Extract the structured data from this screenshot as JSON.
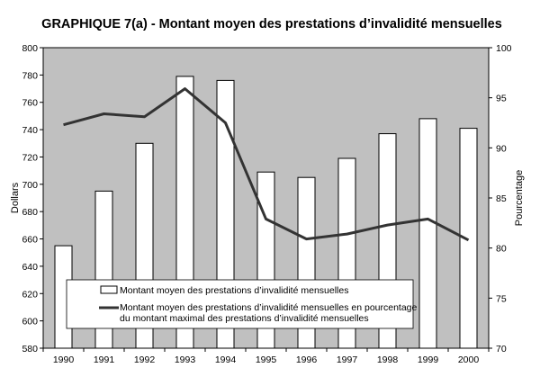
{
  "chart_data": {
    "type": "bar",
    "title": "GRAPHIQUE 7(a) - Montant moyen des prestations d’invalidité mensuelles",
    "categories": [
      "1990",
      "1991",
      "1992",
      "1993",
      "1994",
      "1995",
      "1996",
      "1997",
      "1998",
      "1999",
      "2000"
    ],
    "ylabel": "Dollars",
    "ylim": [
      580,
      800
    ],
    "yticks": [
      580,
      600,
      620,
      640,
      660,
      680,
      700,
      720,
      740,
      760,
      780,
      800
    ],
    "y2label": "Pourcentage",
    "y2lim": [
      70,
      100
    ],
    "y2ticks": [
      70,
      75,
      80,
      85,
      90,
      95,
      100
    ],
    "plot_background": "#c0c0c0",
    "grid": false,
    "legend_position": "bottom-center",
    "series": [
      {
        "name": "Montant moyen des prestations d’invalidité mensuelles",
        "type": "bar",
        "axis": "left",
        "color": "#ffffff",
        "values": [
          655,
          695,
          730,
          779,
          776,
          709,
          705,
          719,
          737,
          748,
          741
        ]
      },
      {
        "name": "Montant moyen des prestations d’invalidité mensuelles en pourcentage du montant maximal des prestations d’invalidité mensuelles",
        "name_lines": [
          "Montant moyen des prestations d’invalidité mensuelles en pourcentage",
          "du montant maximal des prestations d’invalidité mensuelles"
        ],
        "type": "line",
        "axis": "right",
        "color": "#333333",
        "values": [
          92.3,
          93.4,
          93.1,
          95.9,
          92.5,
          82.9,
          80.9,
          81.4,
          82.3,
          82.9,
          80.8
        ]
      }
    ]
  }
}
